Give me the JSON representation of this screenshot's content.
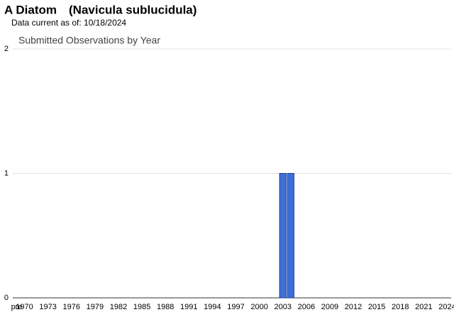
{
  "header": {
    "common_name": "A Diatom",
    "scientific_name": "(Navicula sublucidula)",
    "date_line": "Data current as of: 10/18/2024"
  },
  "chart_data": {
    "type": "bar",
    "title": "Submitted Observations by Year",
    "categories": [
      "pre",
      "1970",
      null,
      null,
      "1973",
      null,
      null,
      "1976",
      null,
      null,
      "1979",
      null,
      null,
      "1982",
      null,
      null,
      "1985",
      null,
      null,
      "1988",
      null,
      null,
      "1991",
      null,
      null,
      "1994",
      null,
      null,
      "1997",
      null,
      null,
      "2000",
      null,
      null,
      "2003",
      null,
      null,
      "2006",
      null,
      null,
      "2009",
      null,
      null,
      "2012",
      null,
      null,
      "2015",
      null,
      null,
      "2018",
      null,
      null,
      "2021",
      null,
      null,
      "2024"
    ],
    "values": [
      0,
      0,
      0,
      0,
      0,
      0,
      0,
      0,
      0,
      0,
      0,
      0,
      0,
      0,
      0,
      0,
      0,
      0,
      0,
      0,
      0,
      0,
      0,
      0,
      0,
      0,
      0,
      0,
      0,
      0,
      0,
      0,
      0,
      0,
      1,
      1,
      0,
      0,
      0,
      0,
      0,
      0,
      0,
      0,
      0,
      0,
      0,
      0,
      0,
      0,
      0,
      0,
      0,
      0,
      0,
      0
    ],
    "color": "#3f6fd6",
    "ylim": [
      0,
      2
    ],
    "yticks": [
      0,
      1,
      2
    ],
    "grid": true
  }
}
